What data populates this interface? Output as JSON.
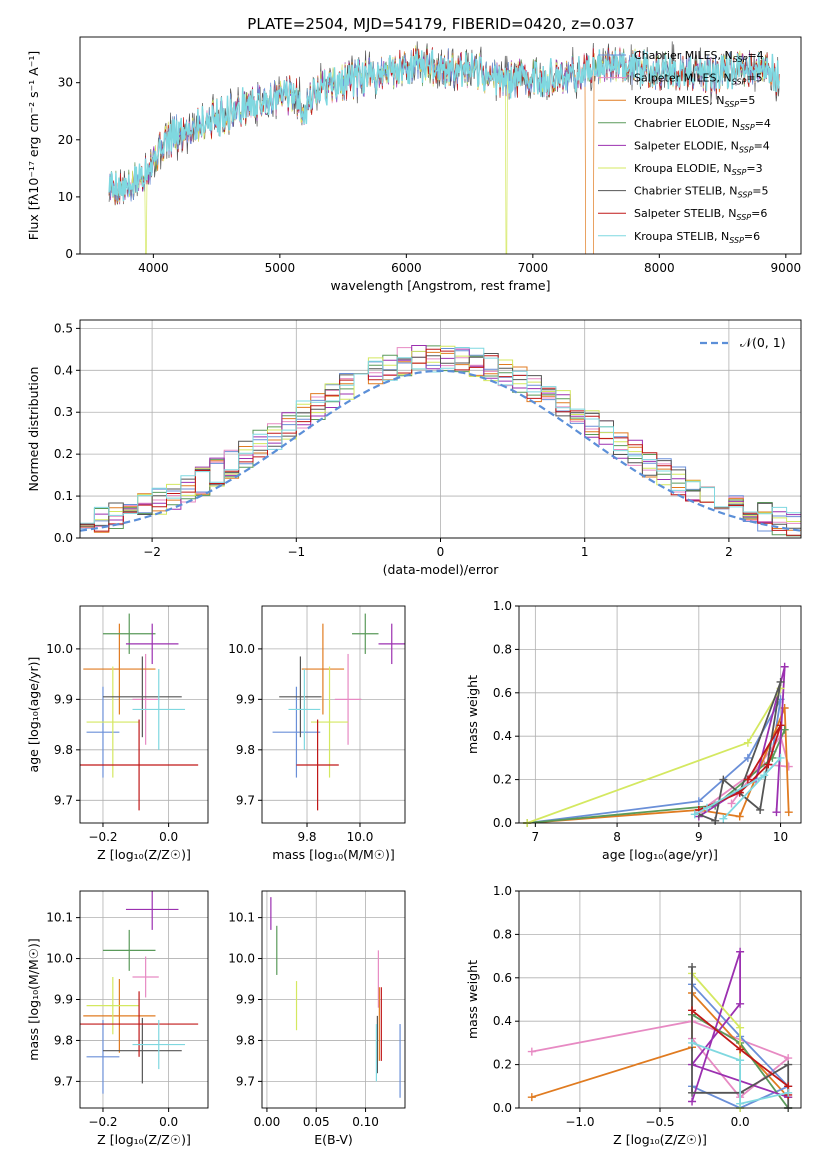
{
  "colors": {
    "chabrier_miles": "#6a8fd8",
    "salpeter_miles": "#e78ac3",
    "kroupa_miles": "#e07b20",
    "chabrier_elodie": "#5a9a5a",
    "salpeter_elodie": "#9b30b0",
    "kroupa_elodie": "#d4e860",
    "chabrier_stelib": "#555555",
    "salpeter_stelib": "#c01818",
    "kroupa_stelib": "#7fd8e0",
    "gaussian": "#5b8fd8"
  },
  "chart_data": [
    {
      "id": "spectrum",
      "type": "line",
      "title": "PLATE=2504, MJD=54179, FIBERID=0420, z=0.037",
      "xlabel": "wavelength [Angstrom, rest frame]",
      "ylabel": "Flux [fλ10⁻¹⁷ erg cm⁻² s⁻¹ A⁻¹]",
      "xlim": [
        3420,
        9120
      ],
      "ylim": [
        0,
        38
      ],
      "xticks": [
        "4000",
        "5000",
        "6000",
        "7000",
        "8000",
        "9000"
      ],
      "yticks": [
        "0",
        "10",
        "20",
        "30"
      ],
      "legend_position": "top-right",
      "legend": [
        {
          "text": "Chabrier MILES, N",
          "sub": "SSP",
          "tail": "=4",
          "color": "chabrier_miles"
        },
        {
          "text": "Salpeter MILES, N",
          "sub": "SSP",
          "tail": "=5",
          "color": "salpeter_miles"
        },
        {
          "text": "Kroupa MILES, N",
          "sub": "SSP",
          "tail": "=5",
          "color": "kroupa_miles"
        },
        {
          "text": "Chabrier ELODIE, N",
          "sub": "SSP",
          "tail": "=4",
          "color": "chabrier_elodie"
        },
        {
          "text": "Salpeter ELODIE, N",
          "sub": "SSP",
          "tail": "=4",
          "color": "salpeter_elodie"
        },
        {
          "text": "Kroupa ELODIE, N",
          "sub": "SSP",
          "tail": "=3",
          "color": "kroupa_elodie"
        },
        {
          "text": "Chabrier STELIB, N",
          "sub": "SSP",
          "tail": "=5",
          "color": "chabrier_stelib"
        },
        {
          "text": "Salpeter STELIB, N",
          "sub": "SSP",
          "tail": "=6",
          "color": "salpeter_stelib"
        },
        {
          "text": "Kroupa STELIB, N",
          "sub": "SSP",
          "tail": "=6",
          "color": "kroupa_stelib"
        }
      ],
      "continuum": [
        [
          3650,
          12
        ],
        [
          3800,
          11
        ],
        [
          3950,
          15
        ],
        [
          4100,
          20
        ],
        [
          4300,
          22
        ],
        [
          4500,
          24
        ],
        [
          4700,
          25.5
        ],
        [
          4900,
          27
        ],
        [
          5100,
          28
        ],
        [
          5200,
          25.5
        ],
        [
          5300,
          29
        ],
        [
          5500,
          30
        ],
        [
          5800,
          31.5
        ],
        [
          6000,
          33
        ],
        [
          6200,
          33
        ],
        [
          6400,
          32
        ],
        [
          6600,
          31.5
        ],
        [
          6800,
          30.5
        ],
        [
          7000,
          31
        ],
        [
          7200,
          30.5
        ],
        [
          7400,
          32
        ],
        [
          7600,
          33.5
        ],
        [
          7800,
          33
        ],
        [
          8000,
          32
        ],
        [
          8200,
          32
        ],
        [
          8400,
          31.5
        ],
        [
          8600,
          32
        ],
        [
          8800,
          32
        ],
        [
          8950,
          31
        ]
      ],
      "drops": [
        {
          "series": "kroupa_elodie",
          "x": 3940,
          "to": 0
        },
        {
          "series": "kroupa_elodie",
          "x": 6790,
          "to": 0
        },
        {
          "series": "kroupa_miles",
          "x": 7420,
          "to": 0
        }
      ]
    },
    {
      "id": "residuals",
      "type": "histogram",
      "xlabel": "(data-model)/error",
      "ylabel": "Normed distribution",
      "xlim": [
        -2.5,
        2.5
      ],
      "ylim": [
        0,
        0.52
      ],
      "xticks": [
        "−2",
        "−1",
        "0",
        "1",
        "2"
      ],
      "yticks": [
        "0.0",
        "0.1",
        "0.2",
        "0.3",
        "0.4",
        "0.5"
      ],
      "legend": "𝒩(0, 1)",
      "legend_position": "top-right",
      "bin_width": 0.1,
      "overlay": "gaussian N(0,1)"
    },
    {
      "id": "z_age",
      "type": "scatter",
      "xlabel": "Z [log₁₀(Z/Z☉)]",
      "ylabel": "age  [log₁₀(age/yr)]",
      "xlim": [
        -0.27,
        0.12
      ],
      "ylim": [
        9.655,
        10.085
      ],
      "xticks": [
        "−0.2",
        "0.0"
      ],
      "yticks": [
        "9.7",
        "9.8",
        "9.9",
        "10.0"
      ],
      "points": [
        {
          "series": "chabrier_miles",
          "x": -0.2,
          "xerr": 0.05,
          "y": 9.835,
          "yerr": 0.09
        },
        {
          "series": "salpeter_miles",
          "x": -0.07,
          "xerr": 0.04,
          "y": 9.9,
          "yerr": 0.09
        },
        {
          "series": "kroupa_miles",
          "x": -0.15,
          "xerr": 0.11,
          "y": 9.96,
          "yerr": 0.09
        },
        {
          "series": "chabrier_elodie",
          "x": -0.12,
          "xerr": 0.08,
          "y": 10.03,
          "yerr": 0.04
        },
        {
          "series": "salpeter_elodie",
          "x": -0.05,
          "xerr": 0.08,
          "y": 10.01,
          "yerr": 0.04
        },
        {
          "series": "kroupa_elodie",
          "x": -0.17,
          "xerr": 0.08,
          "y": 9.855,
          "yerr": 0.11
        },
        {
          "series": "chabrier_stelib",
          "x": -0.08,
          "xerr": 0.12,
          "y": 9.905,
          "yerr": 0.08
        },
        {
          "series": "salpeter_stelib",
          "x": -0.09,
          "xerr": 0.18,
          "y": 9.77,
          "yerr": 0.09
        },
        {
          "series": "kroupa_stelib",
          "x": -0.03,
          "xerr": 0.08,
          "y": 9.88,
          "yerr": 0.08
        }
      ]
    },
    {
      "id": "mass_age",
      "type": "scatter",
      "xlabel": "mass [log₁₀(M/M☉)]",
      "ylabel": "",
      "xlim": [
        9.63,
        10.17
      ],
      "ylim": [
        9.655,
        10.085
      ],
      "xticks": [
        "9.8",
        "10.0"
      ],
      "yticks": [
        "9.7",
        "9.8",
        "9.9",
        "10.0"
      ],
      "points": [
        {
          "series": "chabrier_miles",
          "x": 9.76,
          "xerr": 0.09,
          "y": 9.835,
          "yerr": 0.09
        },
        {
          "series": "salpeter_miles",
          "x": 9.955,
          "xerr": 0.05,
          "y": 9.9,
          "yerr": 0.09
        },
        {
          "series": "kroupa_miles",
          "x": 9.86,
          "xerr": 0.08,
          "y": 9.96,
          "yerr": 0.09
        },
        {
          "series": "chabrier_elodie",
          "x": 10.02,
          "xerr": 0.05,
          "y": 10.03,
          "yerr": 0.04
        },
        {
          "series": "salpeter_elodie",
          "x": 10.12,
          "xerr": 0.05,
          "y": 10.01,
          "yerr": 0.04
        },
        {
          "series": "kroupa_elodie",
          "x": 9.885,
          "xerr": 0.07,
          "y": 9.855,
          "yerr": 0.11
        },
        {
          "series": "chabrier_stelib",
          "x": 9.775,
          "xerr": 0.08,
          "y": 9.905,
          "yerr": 0.08
        },
        {
          "series": "salpeter_stelib",
          "x": 9.84,
          "xerr": 0.08,
          "y": 9.77,
          "yerr": 0.09
        },
        {
          "series": "kroupa_stelib",
          "x": 9.79,
          "xerr": 0.06,
          "y": 9.88,
          "yerr": 0.08
        }
      ]
    },
    {
      "id": "age_massweight",
      "type": "line",
      "xlabel": "age  [log₁₀(age/yr)]",
      "ylabel": "mass weight",
      "xlim": [
        6.8,
        10.25
      ],
      "ylim": [
        0,
        1.0
      ],
      "xticks": [
        "7",
        "8",
        "9",
        "10"
      ],
      "yticks": [
        "0.0",
        "0.2",
        "0.4",
        "0.6",
        "0.8",
        "1.0"
      ],
      "series": [
        {
          "series": "chabrier_miles",
          "points": [
            [
              6.9,
              0.0
            ],
            [
              9.0,
              0.1
            ],
            [
              9.6,
              0.3
            ],
            [
              10.0,
              0.57
            ],
            [
              9.9,
              0.33
            ]
          ]
        },
        {
          "series": "salpeter_miles",
          "points": [
            [
              9.0,
              0.05
            ],
            [
              9.8,
              0.27
            ],
            [
              10.1,
              0.26
            ],
            [
              10.0,
              0.4
            ],
            [
              9.4,
              0.09
            ]
          ]
        },
        {
          "series": "kroupa_miles",
          "points": [
            [
              6.9,
              0.0
            ],
            [
              9.0,
              0.06
            ],
            [
              9.5,
              0.03
            ],
            [
              10.05,
              0.53
            ],
            [
              10.1,
              0.05
            ]
          ]
        },
        {
          "series": "chabrier_elodie",
          "points": [
            [
              6.9,
              0.0
            ],
            [
              9.2,
              0.08
            ],
            [
              9.9,
              0.3
            ],
            [
              10.05,
              0.43
            ]
          ]
        },
        {
          "series": "salpeter_elodie",
          "points": [
            [
              9.0,
              0.03
            ],
            [
              9.7,
              0.2
            ],
            [
              10.05,
              0.72
            ],
            [
              9.95,
              0.05
            ]
          ]
        },
        {
          "series": "kroupa_elodie",
          "points": [
            [
              6.9,
              0.0
            ],
            [
              9.6,
              0.37
            ],
            [
              10.0,
              0.62
            ]
          ]
        },
        {
          "series": "chabrier_stelib",
          "points": [
            [
              9.0,
              0.04
            ],
            [
              9.2,
              0.01
            ],
            [
              9.3,
              0.2
            ],
            [
              9.75,
              0.06
            ],
            [
              10.0,
              0.65
            ],
            [
              9.5,
              0.14
            ]
          ]
        },
        {
          "series": "salpeter_stelib",
          "points": [
            [
              9.0,
              0.06
            ],
            [
              9.5,
              0.14
            ],
            [
              9.85,
              0.27
            ],
            [
              10.0,
              0.45
            ],
            [
              9.6,
              0.2
            ]
          ]
        },
        {
          "series": "kroupa_stelib",
          "points": [
            [
              8.95,
              0.04
            ],
            [
              9.1,
              0.07
            ],
            [
              9.8,
              0.22
            ],
            [
              10.0,
              0.3
            ],
            [
              9.3,
              0.02
            ]
          ]
        }
      ]
    },
    {
      "id": "z_mass",
      "type": "scatter",
      "xlabel": "Z [log₁₀(Z/Z☉)]",
      "ylabel": "mass [log₁₀(M/M☉)]",
      "xlim": [
        -0.27,
        0.12
      ],
      "ylim": [
        9.635,
        10.165
      ],
      "xticks": [
        "−0.2",
        "0.0"
      ],
      "yticks": [
        "9.7",
        "9.8",
        "9.9",
        "10.0",
        "10.1"
      ],
      "points": [
        {
          "series": "chabrier_miles",
          "x": -0.2,
          "xerr": 0.05,
          "y": 9.76,
          "yerr": 0.09
        },
        {
          "series": "salpeter_miles",
          "x": -0.07,
          "xerr": 0.04,
          "y": 9.955,
          "yerr": 0.05
        },
        {
          "series": "kroupa_miles",
          "x": -0.15,
          "xerr": 0.11,
          "y": 9.86,
          "yerr": 0.09
        },
        {
          "series": "chabrier_elodie",
          "x": -0.12,
          "xerr": 0.08,
          "y": 10.02,
          "yerr": 0.05
        },
        {
          "series": "salpeter_elodie",
          "x": -0.05,
          "xerr": 0.08,
          "y": 10.12,
          "yerr": 0.05
        },
        {
          "series": "kroupa_elodie",
          "x": -0.17,
          "xerr": 0.08,
          "y": 9.885,
          "yerr": 0.07
        },
        {
          "series": "chabrier_stelib",
          "x": -0.08,
          "xerr": 0.12,
          "y": 9.775,
          "yerr": 0.08
        },
        {
          "series": "salpeter_stelib",
          "x": -0.09,
          "xerr": 0.18,
          "y": 9.84,
          "yerr": 0.08
        },
        {
          "series": "kroupa_stelib",
          "x": -0.03,
          "xerr": 0.08,
          "y": 9.79,
          "yerr": 0.06
        }
      ]
    },
    {
      "id": "ebv_mass",
      "type": "scatter",
      "xlabel": "E(B-V)",
      "ylabel": "",
      "xlim": [
        -0.005,
        0.14
      ],
      "ylim": [
        9.635,
        10.165
      ],
      "xticks": [
        "0.00",
        "0.05",
        "0.10"
      ],
      "yticks": [
        "9.7",
        "9.8",
        "9.9",
        "10.0",
        "10.1"
      ],
      "points": [
        {
          "series": "chabrier_miles",
          "x": 0.135,
          "y": 9.75,
          "yerr": 0.09
        },
        {
          "series": "salpeter_miles",
          "x": 0.113,
          "y": 9.95,
          "yerr": 0.07
        },
        {
          "series": "kroupa_miles",
          "x": 0.114,
          "y": 9.84,
          "yerr": 0.09
        },
        {
          "series": "chabrier_elodie",
          "x": 0.01,
          "y": 10.02,
          "yerr": 0.06
        },
        {
          "series": "salpeter_elodie",
          "x": 0.004,
          "y": 10.11,
          "yerr": 0.04
        },
        {
          "series": "kroupa_elodie",
          "x": 0.03,
          "y": 9.885,
          "yerr": 0.06
        },
        {
          "series": "chabrier_stelib",
          "x": 0.112,
          "y": 9.79,
          "yerr": 0.07
        },
        {
          "series": "salpeter_stelib",
          "x": 0.116,
          "y": 9.84,
          "yerr": 0.09
        },
        {
          "series": "kroupa_stelib",
          "x": 0.111,
          "y": 9.77,
          "yerr": 0.07
        }
      ]
    },
    {
      "id": "z_massweight",
      "type": "line",
      "xlabel": "Z [log₁₀(Z/Z☉)]",
      "ylabel": "mass weight",
      "xlim": [
        -1.38,
        0.38
      ],
      "ylim": [
        0,
        1.0
      ],
      "xticks": [
        "−1.0",
        "−0.5",
        "0.0"
      ],
      "yticks": [
        "0.0",
        "0.2",
        "0.4",
        "0.6",
        "0.8",
        "1.0"
      ],
      "series": [
        {
          "series": "salpeter_miles",
          "points": [
            [
              -1.3,
              0.26
            ],
            [
              -0.3,
              0.4
            ],
            [
              0.3,
              0.23
            ],
            [
              0.0,
              0.05
            ],
            [
              -0.3,
              0.32
            ]
          ]
        },
        {
          "series": "kroupa_miles",
          "points": [
            [
              -1.3,
              0.05
            ],
            [
              -0.3,
              0.28
            ],
            [
              -0.3,
              0.53
            ],
            [
              0.3,
              0.05
            ]
          ]
        },
        {
          "series": "chabrier_miles",
          "points": [
            [
              -0.3,
              0.57
            ],
            [
              0.0,
              0.33
            ],
            [
              0.3,
              0.1
            ],
            [
              0.0,
              0.0
            ],
            [
              -0.3,
              0.1
            ]
          ]
        },
        {
          "series": "chabrier_elodie",
          "points": [
            [
              -0.3,
              0.43
            ],
            [
              0.0,
              0.3
            ],
            [
              0.3,
              0.0
            ]
          ]
        },
        {
          "series": "salpeter_elodie",
          "points": [
            [
              -0.3,
              0.03
            ],
            [
              0.0,
              0.72
            ],
            [
              0.0,
              0.48
            ],
            [
              -0.3,
              0.2
            ],
            [
              0.3,
              0.05
            ]
          ]
        },
        {
          "series": "kroupa_elodie",
          "points": [
            [
              -0.3,
              0.62
            ],
            [
              0.0,
              0.37
            ],
            [
              0.0,
              0.0
            ]
          ]
        },
        {
          "series": "chabrier_stelib",
          "points": [
            [
              -0.3,
              0.65
            ],
            [
              -0.3,
              0.07
            ],
            [
              0.0,
              0.07
            ],
            [
              0.3,
              0.2
            ],
            [
              0.3,
              0.0
            ]
          ]
        },
        {
          "series": "salpeter_stelib",
          "points": [
            [
              -0.3,
              0.45
            ],
            [
              0.0,
              0.27
            ],
            [
              0.3,
              0.1
            ],
            [
              0.3,
              0.06
            ]
          ]
        },
        {
          "series": "kroupa_stelib",
          "points": [
            [
              -0.3,
              0.3
            ],
            [
              0.0,
              0.22
            ],
            [
              0.0,
              0.02
            ],
            [
              0.3,
              0.07
            ]
          ]
        }
      ]
    }
  ]
}
